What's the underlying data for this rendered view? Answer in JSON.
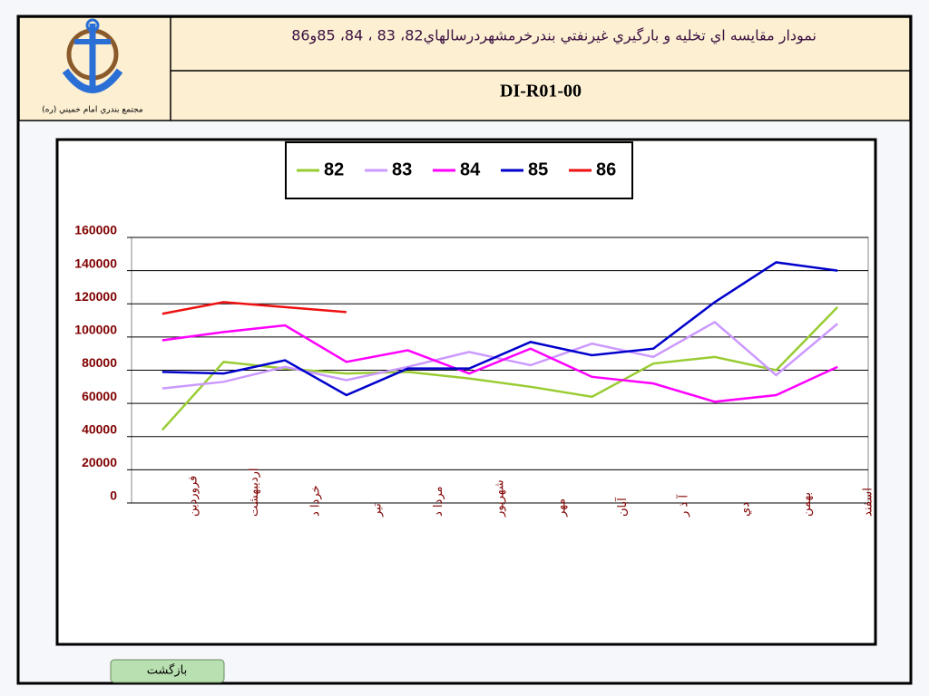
{
  "header": {
    "title": "نمودار مقايسه اي تخليه و بارگيري غيرنفتي بندرخرمشهردرسالهاي82، 83 ، 84، 85و86",
    "code": "DI-R01-00",
    "logo_caption": "مجتمع بندري امام خميني (ره)"
  },
  "button": {
    "label": "بازگشت"
  },
  "chart_data": {
    "type": "line",
    "categories": [
      "فروردين",
      "ارديبهشت",
      "خردا د",
      "تير",
      "مردا د",
      "شهريور",
      "مهر",
      "آبان",
      "آ ذ ر",
      "دي",
      "بهمن",
      "اسفند"
    ],
    "series": [
      {
        "name": "82",
        "color": "#99cc33",
        "values": [
          44000,
          85000,
          81000,
          78000,
          79000,
          75000,
          70000,
          64000,
          84000,
          88000,
          80000,
          118000
        ]
      },
      {
        "name": "83",
        "color": "#cc99ff",
        "values": [
          69000,
          73000,
          82000,
          74000,
          82000,
          91000,
          83000,
          96000,
          88000,
          109000,
          77000,
          108000
        ]
      },
      {
        "name": "84",
        "color": "#ff00ff",
        "values": [
          98000,
          103000,
          107000,
          85000,
          92000,
          78000,
          93000,
          76000,
          72000,
          61000,
          65000,
          82000
        ]
      },
      {
        "name": "85",
        "color": "#0000cc",
        "values": [
          79000,
          78000,
          86000,
          65000,
          81000,
          81000,
          97000,
          89000,
          93000,
          121000,
          145000,
          140000
        ]
      },
      {
        "name": "86",
        "color": "#ee1111",
        "values": [
          114000,
          121000,
          118000,
          115000,
          null,
          null,
          null,
          null,
          null,
          null,
          null,
          null
        ]
      }
    ],
    "ylim": [
      0,
      160000
    ],
    "yticks": [
      0,
      20000,
      40000,
      60000,
      80000,
      100000,
      120000,
      140000,
      160000
    ],
    "grid": true,
    "legend": "top"
  }
}
